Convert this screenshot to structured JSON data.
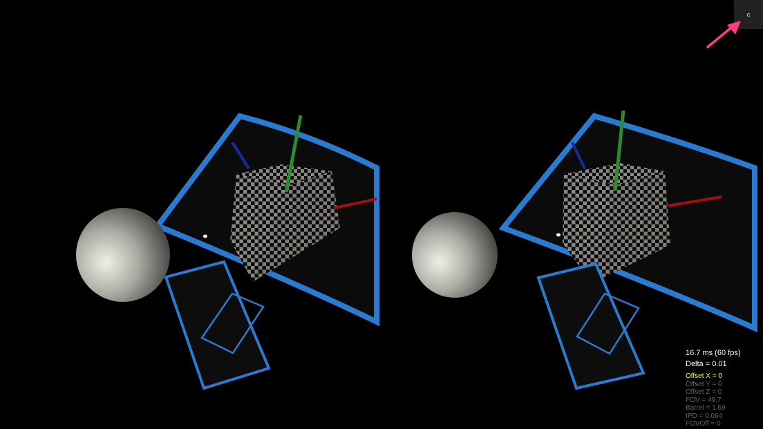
{
  "toolbar": {
    "corner_button_label": "c"
  },
  "stats": {
    "frame_time": "16.7 ms (60 fps)",
    "delta": "Delta = 0.01",
    "params": [
      {
        "text": "Offset X = 0",
        "active": true
      },
      {
        "text": "Offset Y = 0",
        "active": false
      },
      {
        "text": "Offset Z = 0",
        "active": false
      },
      {
        "text": "FOV = 49.7",
        "active": false
      },
      {
        "text": "Barrel = 1.69",
        "active": false
      },
      {
        "text": "IPD = 0.064",
        "active": false
      },
      {
        "text": "FOVOff = 0",
        "active": false
      }
    ]
  },
  "colors": {
    "background": "#000000",
    "frame_blue": "#2a7bd0",
    "axis_green": "#2d8a2d",
    "axis_blue": "#1a2a9c",
    "axis_red": "#a01010",
    "checker_light": "#8a8782",
    "checker_dark": "#0b0b0b",
    "sphere": "#c8c8c0",
    "active_param": "#ffff33",
    "inactive_param": "#666666",
    "pointer_arrow": "#ff3d7f"
  }
}
